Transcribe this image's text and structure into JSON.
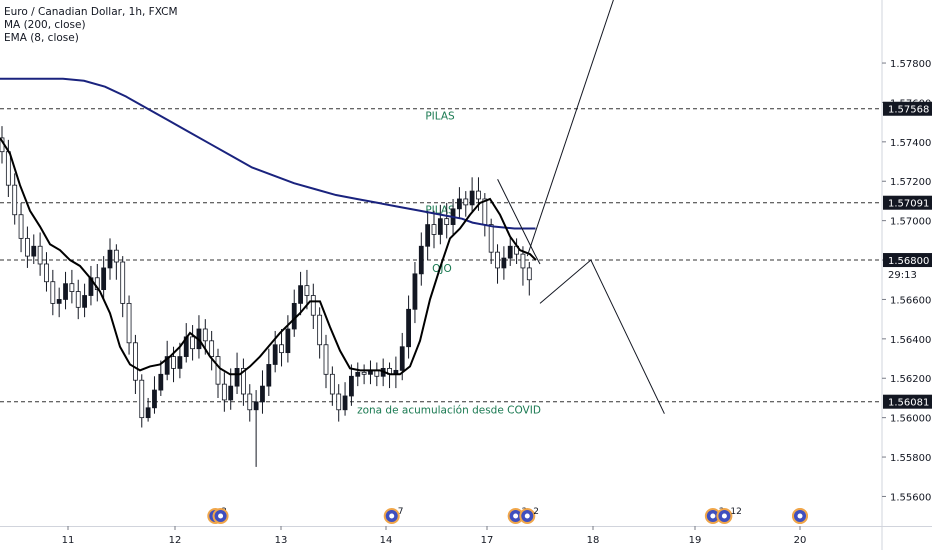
{
  "header": {
    "title": "Euro / Canadian Dollar, 1h, FXCM",
    "indicator_ma": "MA (200, close)",
    "indicator_ema": "EMA (8, close)"
  },
  "colors": {
    "candle_up": "#131722",
    "candle_down": "#ffffff",
    "ma": "#1a237e",
    "ema": "#000000",
    "annotation_text": "#1b7a52",
    "level_line": "#333333"
  },
  "chart_data": {
    "type": "candlestick",
    "symbol": "EUR/CAD",
    "timeframe": "1h",
    "ylim": [
      1.5545,
      1.5812
    ],
    "y_ticks": [
      1.556,
      1.558,
      1.56,
      1.562,
      1.564,
      1.566,
      1.568,
      1.57,
      1.572,
      1.574,
      1.576,
      1.578
    ],
    "y_tick_labels": [
      "1.55600",
      "1.55800",
      "1.56000",
      "1.56200",
      "1.56400",
      "1.56600",
      "1.56800",
      "1.57000",
      "1.57200",
      "1.57400",
      "1.57600",
      "1.57800"
    ],
    "x_ticks": [
      11,
      12,
      13,
      14,
      17,
      18,
      19,
      20
    ],
    "x_tick_labels": [
      "11",
      "12",
      "13",
      "14",
      "17",
      "18",
      "19",
      "20"
    ],
    "levels": [
      {
        "value": 1.57568,
        "label": "1.57568",
        "text": "PILAS"
      },
      {
        "value": 1.57091,
        "label": "1.57091",
        "text": "PILAS"
      },
      {
        "value": 1.568,
        "label": "1.56800",
        "text": "OJO"
      },
      {
        "value": 1.56081,
        "label": "1.56081",
        "text": "zona de acumulación desde COVID"
      }
    ],
    "countdown": "29:13",
    "ma_path": [
      [
        0,
        1.5772
      ],
      [
        10,
        1.5772
      ],
      [
        20,
        1.5772
      ],
      [
        30,
        1.5772
      ],
      [
        40,
        1.5771
      ],
      [
        50,
        1.5768
      ],
      [
        60,
        1.5763
      ],
      [
        70,
        1.5757
      ],
      [
        80,
        1.5751
      ],
      [
        90,
        1.5745
      ],
      [
        100,
        1.5739
      ],
      [
        110,
        1.5733
      ],
      [
        120,
        1.5727
      ],
      [
        130,
        1.5723
      ],
      [
        140,
        1.5719
      ],
      [
        150,
        1.5716
      ],
      [
        160,
        1.5713
      ],
      [
        170,
        1.5711
      ],
      [
        180,
        1.5709
      ],
      [
        190,
        1.5707
      ],
      [
        200,
        1.5705
      ],
      [
        210,
        1.5703
      ],
      [
        220,
        1.5701
      ],
      [
        225,
        1.5699
      ],
      [
        235,
        1.5697
      ],
      [
        245,
        1.5696
      ],
      [
        255,
        1.5696
      ]
    ],
    "ema_path": [
      [
        0,
        1.5742
      ],
      [
        5,
        1.5734
      ],
      [
        10,
        1.5718
      ],
      [
        15,
        1.5705
      ],
      [
        20,
        1.5697
      ],
      [
        25,
        1.5688
      ],
      [
        30,
        1.5685
      ],
      [
        35,
        1.568
      ],
      [
        40,
        1.5677
      ],
      [
        45,
        1.5671
      ],
      [
        50,
        1.5664
      ],
      [
        55,
        1.5653
      ],
      [
        60,
        1.5636
      ],
      [
        65,
        1.5627
      ],
      [
        70,
        1.5624
      ],
      [
        75,
        1.5626
      ],
      [
        80,
        1.5627
      ],
      [
        85,
        1.5631
      ],
      [
        90,
        1.5636
      ],
      [
        95,
        1.5643
      ],
      [
        100,
        1.5639
      ],
      [
        105,
        1.5631
      ],
      [
        110,
        1.5625
      ],
      [
        115,
        1.5622
      ],
      [
        120,
        1.5622
      ],
      [
        125,
        1.5626
      ],
      [
        130,
        1.5631
      ],
      [
        135,
        1.5637
      ],
      [
        140,
        1.5643
      ],
      [
        145,
        1.5648
      ],
      [
        150,
        1.5653
      ],
      [
        155,
        1.5659
      ],
      [
        160,
        1.5659
      ],
      [
        165,
        1.5646
      ],
      [
        170,
        1.5634
      ],
      [
        175,
        1.5625
      ],
      [
        180,
        1.5624
      ],
      [
        185,
        1.5624
      ],
      [
        190,
        1.5624
      ],
      [
        195,
        1.5622
      ],
      [
        200,
        1.5622
      ],
      [
        205,
        1.5626
      ],
      [
        210,
        1.5639
      ],
      [
        215,
        1.566
      ],
      [
        220,
        1.5676
      ],
      [
        225,
        1.5691
      ],
      [
        230,
        1.5696
      ],
      [
        235,
        1.5703
      ],
      [
        240,
        1.5709
      ],
      [
        245,
        1.5711
      ],
      [
        250,
        1.5703
      ],
      [
        255,
        1.5692
      ],
      [
        260,
        1.5685
      ],
      [
        265,
        1.5683
      ],
      [
        268,
        1.568
      ]
    ],
    "candles": [
      [
        1.5742,
        1.5735,
        1.5748,
        1.5729
      ],
      [
        1.5735,
        1.5718,
        1.5741,
        1.5712
      ],
      [
        1.5718,
        1.5703,
        1.5724,
        1.5698
      ],
      [
        1.5703,
        1.5691,
        1.5709,
        1.5684
      ],
      [
        1.5691,
        1.5682,
        1.5697,
        1.5676
      ],
      [
        1.5682,
        1.5687,
        1.5693,
        1.5678
      ],
      [
        1.5687,
        1.5678,
        1.5694,
        1.5672
      ],
      [
        1.5678,
        1.5669,
        1.5684,
        1.5664
      ],
      [
        1.5669,
        1.5658,
        1.5675,
        1.5652
      ],
      [
        1.5658,
        1.566,
        1.5666,
        1.5651
      ],
      [
        1.566,
        1.5668,
        1.5674,
        1.5655
      ],
      [
        1.5668,
        1.5664,
        1.5675,
        1.5658
      ],
      [
        1.5664,
        1.5656,
        1.567,
        1.565
      ],
      [
        1.5656,
        1.5662,
        1.5668,
        1.5651
      ],
      [
        1.5662,
        1.5671,
        1.5677,
        1.5657
      ],
      [
        1.5671,
        1.5665,
        1.5678,
        1.5659
      ],
      [
        1.5665,
        1.5676,
        1.5682,
        1.566
      ],
      [
        1.5676,
        1.5685,
        1.5691,
        1.567
      ],
      [
        1.5685,
        1.5679,
        1.5688,
        1.567
      ],
      [
        1.5679,
        1.5658,
        1.5682,
        1.5651
      ],
      [
        1.5658,
        1.5638,
        1.5662,
        1.5632
      ],
      [
        1.5638,
        1.5619,
        1.5642,
        1.5612
      ],
      [
        1.5619,
        1.56,
        1.5622,
        1.5595
      ],
      [
        1.56,
        1.5605,
        1.561,
        1.5598
      ],
      [
        1.5605,
        1.5614,
        1.5621,
        1.5602
      ],
      [
        1.5614,
        1.5622,
        1.5629,
        1.5611
      ],
      [
        1.5622,
        1.5631,
        1.5639,
        1.5619
      ],
      [
        1.5631,
        1.5625,
        1.5636,
        1.5618
      ],
      [
        1.5625,
        1.5631,
        1.5638,
        1.562
      ],
      [
        1.5631,
        1.5641,
        1.5648,
        1.5628
      ],
      [
        1.5641,
        1.5635,
        1.5647,
        1.5629
      ],
      [
        1.5635,
        1.5645,
        1.5652,
        1.563
      ],
      [
        1.5645,
        1.5639,
        1.565,
        1.5632
      ],
      [
        1.5639,
        1.5631,
        1.5644,
        1.5624
      ],
      [
        1.5631,
        1.5617,
        1.5635,
        1.561
      ],
      [
        1.5617,
        1.5609,
        1.5623,
        1.5603
      ],
      [
        1.5609,
        1.5616,
        1.5625,
        1.5604
      ],
      [
        1.5616,
        1.5625,
        1.5633,
        1.5612
      ],
      [
        1.5625,
        1.5612,
        1.563,
        1.5606
      ],
      [
        1.5612,
        1.5604,
        1.5617,
        1.5598
      ],
      [
        1.5604,
        1.5608,
        1.5614,
        1.5575
      ],
      [
        1.5608,
        1.5616,
        1.5624,
        1.5602
      ],
      [
        1.5616,
        1.5627,
        1.5635,
        1.5611
      ],
      [
        1.5627,
        1.5637,
        1.5644,
        1.5623
      ],
      [
        1.5637,
        1.5633,
        1.5645,
        1.5626
      ],
      [
        1.5633,
        1.5645,
        1.5652,
        1.5628
      ],
      [
        1.5645,
        1.5658,
        1.5665,
        1.5641
      ],
      [
        1.5658,
        1.5667,
        1.5674,
        1.5652
      ],
      [
        1.5667,
        1.5662,
        1.5675,
        1.5655
      ],
      [
        1.5662,
        1.5652,
        1.5668,
        1.5645
      ],
      [
        1.5652,
        1.5637,
        1.5656,
        1.563
      ],
      [
        1.5637,
        1.5622,
        1.5642,
        1.5615
      ],
      [
        1.5622,
        1.5612,
        1.5626,
        1.5606
      ],
      [
        1.5612,
        1.5604,
        1.5617,
        1.5598
      ],
      [
        1.5604,
        1.5611,
        1.5618,
        1.5601
      ],
      [
        1.5611,
        1.5621,
        1.5627,
        1.5606
      ],
      [
        1.5621,
        1.5623,
        1.5628,
        1.5616
      ],
      [
        1.5623,
        1.5622,
        1.5627,
        1.5617
      ],
      [
        1.5622,
        1.5624,
        1.5629,
        1.5617
      ],
      [
        1.5624,
        1.5621,
        1.5628,
        1.5616
      ],
      [
        1.5621,
        1.5625,
        1.563,
        1.5616
      ],
      [
        1.5625,
        1.5622,
        1.5628,
        1.5615
      ],
      [
        1.5622,
        1.5624,
        1.5631,
        1.5615
      ],
      [
        1.5624,
        1.5636,
        1.5643,
        1.5619
      ],
      [
        1.5636,
        1.5655,
        1.5662,
        1.563
      ],
      [
        1.5655,
        1.5673,
        1.5679,
        1.5648
      ],
      [
        1.5673,
        1.5687,
        1.5694,
        1.5667
      ],
      [
        1.5687,
        1.5698,
        1.5705,
        1.568
      ],
      [
        1.5698,
        1.5693,
        1.5705,
        1.5686
      ],
      [
        1.5693,
        1.5701,
        1.5708,
        1.5688
      ],
      [
        1.5701,
        1.5698,
        1.5709,
        1.5691
      ],
      [
        1.5698,
        1.5706,
        1.5711,
        1.5693
      ],
      [
        1.5706,
        1.5711,
        1.5717,
        1.5701
      ],
      [
        1.5711,
        1.5708,
        1.5715,
        1.5702
      ],
      [
        1.5708,
        1.5715,
        1.5722,
        1.5704
      ],
      [
        1.5715,
        1.5711,
        1.5722,
        1.5705
      ],
      [
        1.5711,
        1.5698,
        1.5714,
        1.5692
      ],
      [
        1.5698,
        1.5684,
        1.5701,
        1.5678
      ],
      [
        1.5684,
        1.5676,
        1.5688,
        1.5668
      ],
      [
        1.5676,
        1.5681,
        1.5687,
        1.567
      ],
      [
        1.5681,
        1.5687,
        1.5692,
        1.5677
      ],
      [
        1.5687,
        1.5683,
        1.5691,
        1.5678
      ],
      [
        1.5683,
        1.5676,
        1.5687,
        1.5667
      ],
      [
        1.5676,
        1.567,
        1.5679,
        1.5662
      ]
    ],
    "calendar_days": [
      "11",
      "12",
      "13",
      "14",
      "17",
      "18",
      "19",
      "20"
    ],
    "event_markers": [
      {
        "day_pos": 10.26,
        "badge": ""
      },
      {
        "day_pos": 12.38,
        "badge": "2"
      },
      {
        "day_pos": 12.43,
        "badge": ""
      },
      {
        "day_pos": 14.17,
        "badge": "7"
      },
      {
        "day_pos": 17.27,
        "badge": "2"
      },
      {
        "day_pos": 17.38,
        "badge": "2"
      },
      {
        "day_pos": 19.17,
        "badge": "2"
      },
      {
        "day_pos": 19.28,
        "badge": "12"
      },
      {
        "day_pos": 20.17,
        "badge": ""
      }
    ],
    "projection": {
      "bullish_path": [
        [
          1.5682,
          17.38
        ],
        [
          1.5812,
          18.2
        ]
      ],
      "bearish_path": [
        [
          1.5658,
          17.5
        ],
        [
          1.568,
          17.98
        ],
        [
          1.5602,
          18.7
        ]
      ],
      "down_leg": [
        [
          1.5721,
          17.1
        ],
        [
          1.5683,
          17.45
        ],
        [
          1.5678,
          17.5
        ]
      ]
    }
  }
}
